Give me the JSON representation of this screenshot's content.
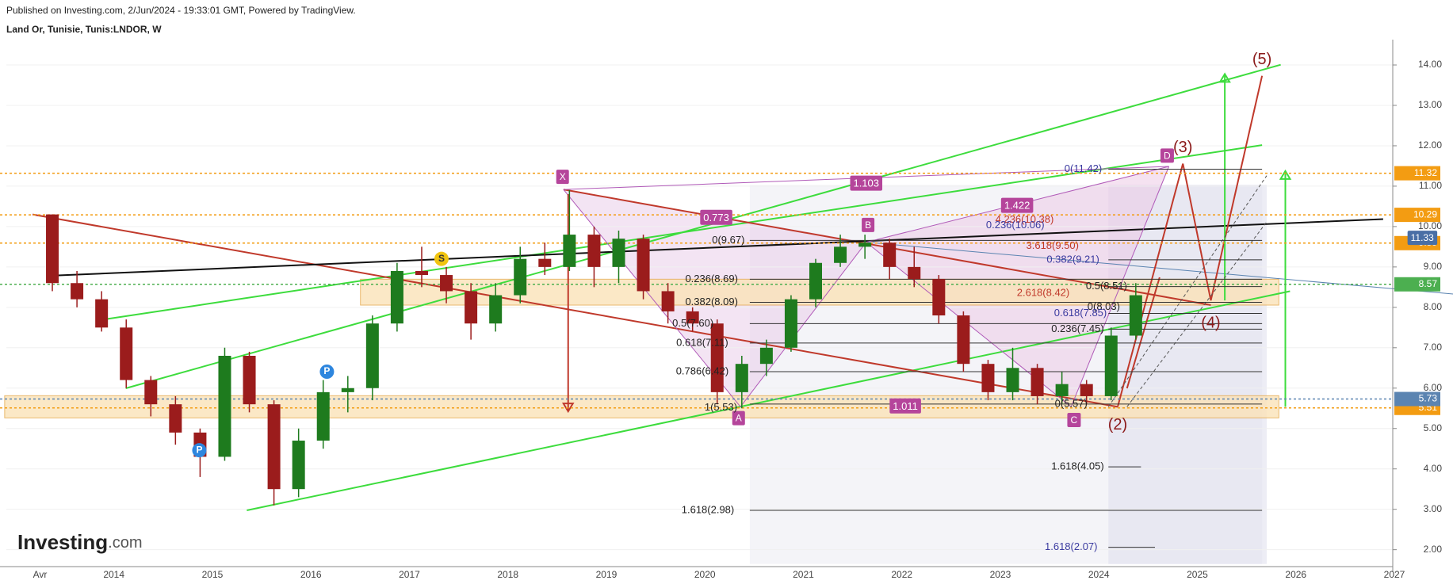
{
  "header": {
    "published": "Published on Investing.com, 2/Jun/2024 - 19:33:01 GMT, Powered by TradingView.",
    "symbol": "Land Or, Tunisie, Tunis:LNDOR, W"
  },
  "logo": {
    "brand": "Investing",
    "suffix": ".com"
  },
  "chart_data": {
    "type": "candlestick",
    "categories": [
      "Avr",
      null,
      null,
      "2014",
      null,
      null,
      null,
      "2015",
      null,
      null,
      null,
      "2016",
      null,
      null,
      null,
      "2017",
      null,
      null,
      null,
      "2018",
      null,
      null,
      null,
      "2019",
      null,
      null,
      null,
      "2020",
      null,
      null,
      null,
      "2021",
      null,
      null,
      null,
      "2022",
      null,
      null,
      null,
      "2023",
      null,
      null,
      null,
      "2024",
      null,
      null,
      null,
      "2025",
      null,
      null,
      null,
      "2026",
      null,
      null,
      null,
      "2027"
    ],
    "open": [
      10.3,
      8.6,
      8.2,
      7.5,
      6.2,
      5.6,
      4.9,
      4.3,
      6.8,
      5.6,
      3.5,
      4.7,
      5.9,
      6.0,
      7.6,
      8.9,
      8.8,
      8.4,
      7.6,
      8.3,
      9.2,
      9.0,
      9.8,
      9.0,
      9.7,
      8.4,
      7.9,
      7.6,
      5.9,
      6.6,
      7.0,
      8.2,
      9.1,
      9.5,
      9.6,
      9.0,
      8.7,
      7.8,
      6.6,
      5.9,
      6.5,
      5.8,
      6.1,
      5.8,
      7.3,
      null,
      null,
      null,
      null,
      null,
      null,
      null,
      null,
      null,
      null,
      null
    ],
    "high": [
      10.3,
      8.9,
      8.4,
      7.7,
      6.3,
      5.8,
      5.0,
      7.0,
      6.9,
      5.7,
      5.0,
      6.2,
      6.3,
      7.8,
      9.1,
      9.5,
      9.0,
      8.6,
      8.6,
      9.5,
      9.6,
      10.9,
      10.0,
      9.9,
      9.8,
      8.6,
      8.0,
      7.7,
      6.8,
      7.2,
      8.3,
      9.2,
      9.8,
      9.8,
      9.7,
      9.5,
      8.8,
      7.9,
      6.7,
      7.0,
      6.6,
      6.4,
      6.2,
      7.5,
      8.6,
      null,
      null,
      null,
      null,
      null,
      null,
      null,
      null,
      null,
      null,
      null
    ],
    "low": [
      8.4,
      8.0,
      7.4,
      6.0,
      5.3,
      4.6,
      3.8,
      4.2,
      5.4,
      3.1,
      3.3,
      4.5,
      5.4,
      5.7,
      7.4,
      8.5,
      8.1,
      7.2,
      7.4,
      8.1,
      8.8,
      8.9,
      8.5,
      8.6,
      8.2,
      7.6,
      7.4,
      5.6,
      5.5,
      6.3,
      6.9,
      8.0,
      9.0,
      9.2,
      8.7,
      8.5,
      7.6,
      6.4,
      5.7,
      5.7,
      5.6,
      5.6,
      5.6,
      5.7,
      7.2,
      null,
      null,
      null,
      null,
      null,
      null,
      null,
      null,
      null,
      null,
      null
    ],
    "close": [
      8.6,
      8.2,
      7.5,
      6.2,
      5.6,
      4.9,
      4.3,
      6.8,
      5.6,
      3.5,
      4.7,
      5.9,
      6.0,
      7.6,
      8.9,
      8.8,
      8.4,
      7.6,
      8.3,
      9.2,
      9.0,
      9.8,
      9.0,
      9.7,
      8.4,
      7.9,
      7.6,
      5.9,
      6.6,
      7.0,
      8.2,
      9.1,
      9.5,
      9.6,
      9.0,
      8.7,
      7.8,
      6.6,
      5.9,
      6.5,
      5.8,
      6.1,
      5.8,
      7.3,
      8.3,
      null,
      null,
      null,
      null,
      null,
      null,
      null,
      null,
      null,
      null,
      null
    ],
    "up_color": "#1e7b1e",
    "down_color": "#9b1c1c",
    "ylim": [
      1.64,
      14.53
    ],
    "yticks": [
      {
        "value": 2,
        "label": "2.00"
      },
      {
        "value": 3,
        "label": "3.00"
      },
      {
        "value": 4,
        "label": "4.00"
      },
      {
        "value": 5,
        "label": "5.00"
      },
      {
        "value": 6,
        "label": "6.00"
      },
      {
        "value": 7,
        "label": "7.00"
      },
      {
        "value": 8,
        "label": "8.00"
      },
      {
        "value": 9,
        "label": "9.00"
      },
      {
        "value": 10,
        "label": "10.00"
      },
      {
        "value": 11,
        "label": "11.00"
      },
      {
        "value": 12,
        "label": "12.00"
      },
      {
        "value": 13,
        "label": "13.00"
      },
      {
        "value": 14,
        "label": "14.00"
      }
    ],
    "grid": true,
    "levels": [
      11.32,
      10.29,
      9.59,
      8.57,
      5.51,
      5.73
    ],
    "level_colors": [
      "#f39c12",
      "#f39c12",
      "#f39c12",
      "#4caf50",
      "#f39c12",
      "#5b84b1"
    ],
    "annotations": [
      "(5)",
      "(3)",
      "(4)",
      "(2)",
      "X",
      "A",
      "B",
      "C",
      "D",
      "S",
      "P",
      "P",
      "0.773",
      "1.103",
      "1.422",
      "1.011",
      "0(11.42)",
      "4.236(10.38)",
      "0.236(10.06)",
      "3.618(9.50)",
      "0.382(9.21)",
      "0.5(8.51)",
      "2.618(8.42)",
      "0(8.03)",
      "0.618(7.85)",
      "0.236(7.45)",
      "0(9.67)",
      "0.236(8.69)",
      "0.382(8.09)",
      "0.5(7.60)",
      "0.618(7.11)",
      "0.786(6.42)",
      "1(5.53)",
      "0(5.57)",
      "1.618(4.05)",
      "1.618(2.98)",
      "1.618(2.07)",
      "11.33"
    ]
  }
}
